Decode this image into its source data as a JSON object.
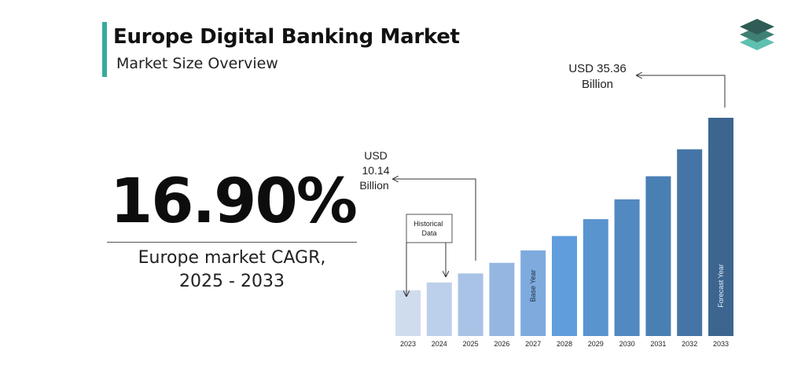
{
  "header": {
    "title": "Europe Digital Banking Market",
    "subtitle": "Market Size Overview"
  },
  "kpi": {
    "cagr_value": "16.90%",
    "cagr_label_line1": "Europe market CAGR,",
    "cagr_label_line2": "2025 - 2033"
  },
  "colors": {
    "accent": "#3aaa9e",
    "logo_top": "#2f5d55",
    "logo_mid": "#3f7f74",
    "logo_bottom": "#5fc0b0"
  },
  "chart_data": {
    "type": "bar",
    "categories": [
      "2023",
      "2024",
      "2025",
      "2026",
      "2027",
      "2028",
      "2029",
      "2030",
      "2031",
      "2032",
      "2033"
    ],
    "values": [
      7.42,
      8.67,
      10.14,
      11.85,
      13.86,
      16.2,
      18.94,
      22.14,
      25.88,
      30.25,
      35.36
    ],
    "colors": [
      "#cfdcee",
      "#bdd0eb",
      "#a9c3e6",
      "#94b6e1",
      "#7eaadd",
      "#5f9ddc",
      "#5a94cf",
      "#5289c0",
      "#4a7fb3",
      "#4575a6",
      "#3c6690"
    ],
    "bar_labels": [
      {
        "index": 4,
        "text": "Base Year"
      },
      {
        "index": 10,
        "text": "Forecast Year"
      }
    ],
    "annotations": {
      "historical": "Historical Data",
      "start_line1": "USD",
      "start_line2": "10.14",
      "start_line3": "Billion",
      "end_line1": "USD 35.36",
      "end_line2": "Billion"
    }
  }
}
